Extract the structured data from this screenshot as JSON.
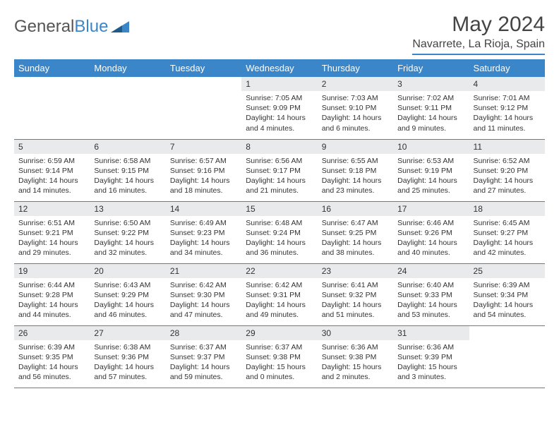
{
  "logo": {
    "part1": "General",
    "part2": "Blue"
  },
  "title": "May 2024",
  "location": "Navarrete, La Rioja, Spain",
  "colors": {
    "header_bg": "#3a86c8",
    "header_text": "#ffffff",
    "daynum_bg": "#e9eaeb",
    "border": "#3a86c8",
    "text": "#333333"
  },
  "weekdays": [
    "Sunday",
    "Monday",
    "Tuesday",
    "Wednesday",
    "Thursday",
    "Friday",
    "Saturday"
  ],
  "weeks": [
    [
      {
        "n": "",
        "sr": "",
        "ss": "",
        "dl": ""
      },
      {
        "n": "",
        "sr": "",
        "ss": "",
        "dl": ""
      },
      {
        "n": "",
        "sr": "",
        "ss": "",
        "dl": ""
      },
      {
        "n": "1",
        "sr": "Sunrise: 7:05 AM",
        "ss": "Sunset: 9:09 PM",
        "dl": "Daylight: 14 hours and 4 minutes."
      },
      {
        "n": "2",
        "sr": "Sunrise: 7:03 AM",
        "ss": "Sunset: 9:10 PM",
        "dl": "Daylight: 14 hours and 6 minutes."
      },
      {
        "n": "3",
        "sr": "Sunrise: 7:02 AM",
        "ss": "Sunset: 9:11 PM",
        "dl": "Daylight: 14 hours and 9 minutes."
      },
      {
        "n": "4",
        "sr": "Sunrise: 7:01 AM",
        "ss": "Sunset: 9:12 PM",
        "dl": "Daylight: 14 hours and 11 minutes."
      }
    ],
    [
      {
        "n": "5",
        "sr": "Sunrise: 6:59 AM",
        "ss": "Sunset: 9:14 PM",
        "dl": "Daylight: 14 hours and 14 minutes."
      },
      {
        "n": "6",
        "sr": "Sunrise: 6:58 AM",
        "ss": "Sunset: 9:15 PM",
        "dl": "Daylight: 14 hours and 16 minutes."
      },
      {
        "n": "7",
        "sr": "Sunrise: 6:57 AM",
        "ss": "Sunset: 9:16 PM",
        "dl": "Daylight: 14 hours and 18 minutes."
      },
      {
        "n": "8",
        "sr": "Sunrise: 6:56 AM",
        "ss": "Sunset: 9:17 PM",
        "dl": "Daylight: 14 hours and 21 minutes."
      },
      {
        "n": "9",
        "sr": "Sunrise: 6:55 AM",
        "ss": "Sunset: 9:18 PM",
        "dl": "Daylight: 14 hours and 23 minutes."
      },
      {
        "n": "10",
        "sr": "Sunrise: 6:53 AM",
        "ss": "Sunset: 9:19 PM",
        "dl": "Daylight: 14 hours and 25 minutes."
      },
      {
        "n": "11",
        "sr": "Sunrise: 6:52 AM",
        "ss": "Sunset: 9:20 PM",
        "dl": "Daylight: 14 hours and 27 minutes."
      }
    ],
    [
      {
        "n": "12",
        "sr": "Sunrise: 6:51 AM",
        "ss": "Sunset: 9:21 PM",
        "dl": "Daylight: 14 hours and 29 minutes."
      },
      {
        "n": "13",
        "sr": "Sunrise: 6:50 AM",
        "ss": "Sunset: 9:22 PM",
        "dl": "Daylight: 14 hours and 32 minutes."
      },
      {
        "n": "14",
        "sr": "Sunrise: 6:49 AM",
        "ss": "Sunset: 9:23 PM",
        "dl": "Daylight: 14 hours and 34 minutes."
      },
      {
        "n": "15",
        "sr": "Sunrise: 6:48 AM",
        "ss": "Sunset: 9:24 PM",
        "dl": "Daylight: 14 hours and 36 minutes."
      },
      {
        "n": "16",
        "sr": "Sunrise: 6:47 AM",
        "ss": "Sunset: 9:25 PM",
        "dl": "Daylight: 14 hours and 38 minutes."
      },
      {
        "n": "17",
        "sr": "Sunrise: 6:46 AM",
        "ss": "Sunset: 9:26 PM",
        "dl": "Daylight: 14 hours and 40 minutes."
      },
      {
        "n": "18",
        "sr": "Sunrise: 6:45 AM",
        "ss": "Sunset: 9:27 PM",
        "dl": "Daylight: 14 hours and 42 minutes."
      }
    ],
    [
      {
        "n": "19",
        "sr": "Sunrise: 6:44 AM",
        "ss": "Sunset: 9:28 PM",
        "dl": "Daylight: 14 hours and 44 minutes."
      },
      {
        "n": "20",
        "sr": "Sunrise: 6:43 AM",
        "ss": "Sunset: 9:29 PM",
        "dl": "Daylight: 14 hours and 46 minutes."
      },
      {
        "n": "21",
        "sr": "Sunrise: 6:42 AM",
        "ss": "Sunset: 9:30 PM",
        "dl": "Daylight: 14 hours and 47 minutes."
      },
      {
        "n": "22",
        "sr": "Sunrise: 6:42 AM",
        "ss": "Sunset: 9:31 PM",
        "dl": "Daylight: 14 hours and 49 minutes."
      },
      {
        "n": "23",
        "sr": "Sunrise: 6:41 AM",
        "ss": "Sunset: 9:32 PM",
        "dl": "Daylight: 14 hours and 51 minutes."
      },
      {
        "n": "24",
        "sr": "Sunrise: 6:40 AM",
        "ss": "Sunset: 9:33 PM",
        "dl": "Daylight: 14 hours and 53 minutes."
      },
      {
        "n": "25",
        "sr": "Sunrise: 6:39 AM",
        "ss": "Sunset: 9:34 PM",
        "dl": "Daylight: 14 hours and 54 minutes."
      }
    ],
    [
      {
        "n": "26",
        "sr": "Sunrise: 6:39 AM",
        "ss": "Sunset: 9:35 PM",
        "dl": "Daylight: 14 hours and 56 minutes."
      },
      {
        "n": "27",
        "sr": "Sunrise: 6:38 AM",
        "ss": "Sunset: 9:36 PM",
        "dl": "Daylight: 14 hours and 57 minutes."
      },
      {
        "n": "28",
        "sr": "Sunrise: 6:37 AM",
        "ss": "Sunset: 9:37 PM",
        "dl": "Daylight: 14 hours and 59 minutes."
      },
      {
        "n": "29",
        "sr": "Sunrise: 6:37 AM",
        "ss": "Sunset: 9:38 PM",
        "dl": "Daylight: 15 hours and 0 minutes."
      },
      {
        "n": "30",
        "sr": "Sunrise: 6:36 AM",
        "ss": "Sunset: 9:38 PM",
        "dl": "Daylight: 15 hours and 2 minutes."
      },
      {
        "n": "31",
        "sr": "Sunrise: 6:36 AM",
        "ss": "Sunset: 9:39 PM",
        "dl": "Daylight: 15 hours and 3 minutes."
      },
      {
        "n": "",
        "sr": "",
        "ss": "",
        "dl": ""
      }
    ]
  ]
}
